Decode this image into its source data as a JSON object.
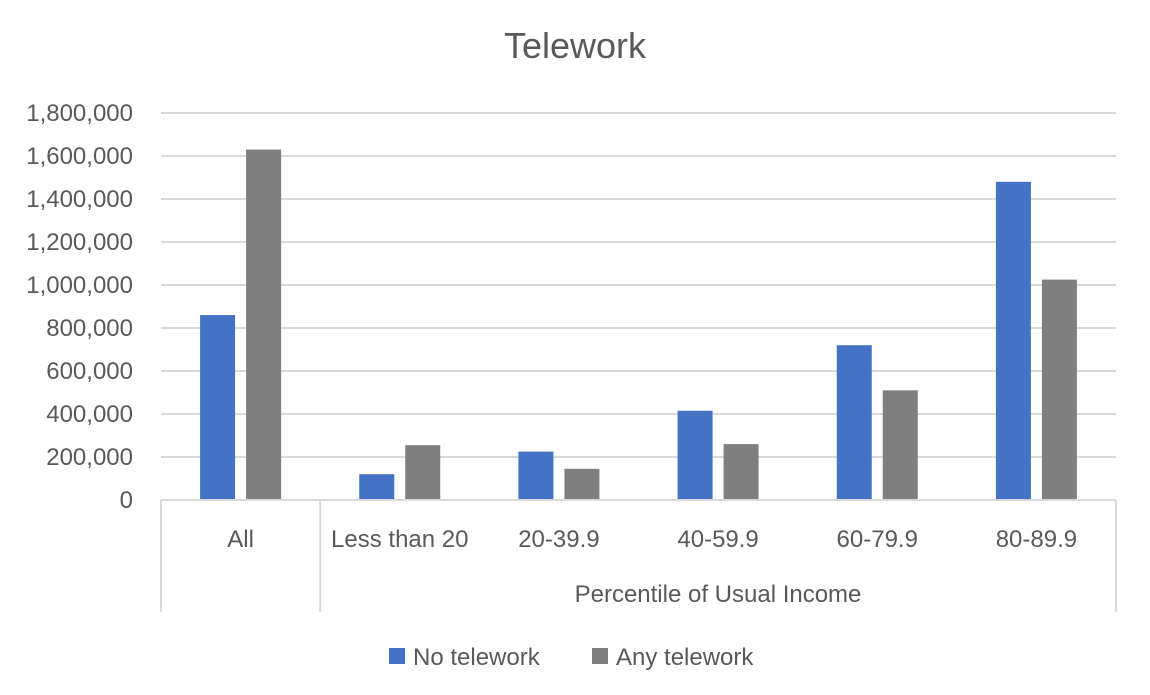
{
  "chart_data": {
    "type": "bar",
    "title": "Telework",
    "xlabel": "Percentile of Usual Income",
    "ylabel": "",
    "ylim": [
      0,
      1800000
    ],
    "yticks": [
      0,
      200000,
      400000,
      600000,
      800000,
      1000000,
      1200000,
      1400000,
      1600000,
      1800000
    ],
    "ytick_labels": [
      "0",
      "200,000",
      "400,000",
      "600,000",
      "800,000",
      "1,000,000",
      "1,200,000",
      "1,400,000",
      "1,600,000",
      "1,800,000"
    ],
    "categories": [
      "All",
      "Less than 20",
      "20-39.9",
      "40-59.9",
      "60-79.9",
      "80-89.9"
    ],
    "category_groups": [
      {
        "label": "",
        "categories": [
          "All"
        ]
      },
      {
        "label": "Percentile of Usual Income",
        "categories": [
          "Less than 20",
          "20-39.9",
          "40-59.9",
          "60-79.9",
          "80-89.9"
        ]
      }
    ],
    "series": [
      {
        "name": "No telework",
        "color": "#4472C4",
        "values": [
          860000,
          120000,
          225000,
          415000,
          720000,
          1480000
        ]
      },
      {
        "name": "Any telework",
        "color": "#7F7F7F",
        "values": [
          1630000,
          255000,
          145000,
          260000,
          510000,
          1025000
        ]
      }
    ],
    "grid": true,
    "legend_position": "bottom"
  }
}
